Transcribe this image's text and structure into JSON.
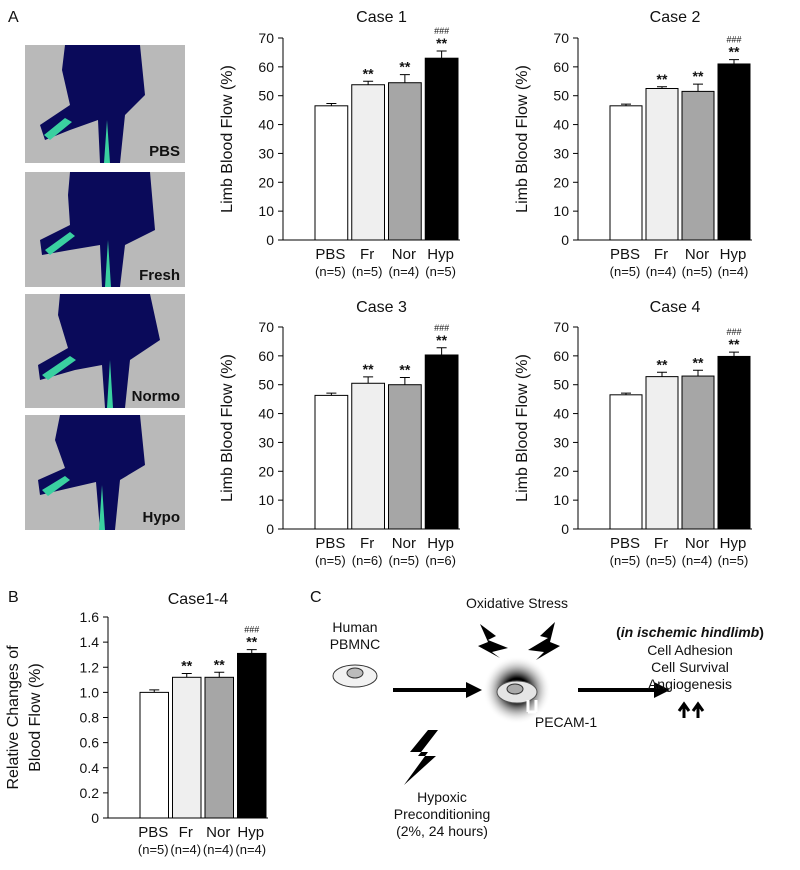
{
  "panel_labels": [
    "A",
    "B",
    "C"
  ],
  "image_labels": [
    "PBS",
    "Fresh",
    "Normo",
    "Hypo"
  ],
  "chart_data": [
    {
      "type": "bar",
      "title": "Case 1",
      "y_label": [
        "Limb Blood Flow (%)"
      ],
      "categories": [
        "PBS",
        "Fr",
        "Nor",
        "Hyp"
      ],
      "n_labels": [
        "(n=5)",
        "(n=5)",
        "(n=4)",
        "(n=5)"
      ],
      "values": [
        46.5,
        53.8,
        54.5,
        63
      ],
      "errors": [
        0.8,
        1.2,
        2.8,
        2.5
      ],
      "sig": [
        null,
        "**",
        "**",
        "**"
      ],
      "sig2": [
        null,
        null,
        null,
        "###"
      ],
      "colors": [
        "#ffffff",
        "#efefef",
        "#a6a6a6",
        "#000000"
      ],
      "ylim": [
        0,
        70
      ],
      "yticks": [
        0,
        10,
        20,
        30,
        40,
        50,
        60,
        70
      ]
    },
    {
      "type": "bar",
      "title": "Case 2",
      "y_label": [
        "Limb Blood Flow (%)"
      ],
      "categories": [
        "PBS",
        "Fr",
        "Nor",
        "Hyp"
      ],
      "n_labels": [
        "(n=5)",
        "(n=4)",
        "(n=5)",
        "(n=4)"
      ],
      "values": [
        46.5,
        52.5,
        51.5,
        61
      ],
      "errors": [
        0.6,
        0.6,
        2.5,
        1.5
      ],
      "sig": [
        null,
        "**",
        "**",
        "**"
      ],
      "sig2": [
        null,
        null,
        null,
        "###"
      ],
      "colors": [
        "#ffffff",
        "#efefef",
        "#a6a6a6",
        "#000000"
      ],
      "ylim": [
        0,
        70
      ],
      "yticks": [
        0,
        10,
        20,
        30,
        40,
        50,
        60,
        70
      ]
    },
    {
      "type": "bar",
      "title": "Case 3",
      "y_label": [
        "Limb Blood Flow (%)"
      ],
      "categories": [
        "PBS",
        "Fr",
        "Nor",
        "Hyp"
      ],
      "n_labels": [
        "(n=5)",
        "(n=6)",
        "(n=5)",
        "(n=6)"
      ],
      "values": [
        46.3,
        50.5,
        50,
        60.3
      ],
      "errors": [
        0.8,
        2.2,
        2.5,
        2.5
      ],
      "sig": [
        null,
        "**",
        "**",
        "**"
      ],
      "sig2": [
        null,
        null,
        null,
        "###"
      ],
      "colors": [
        "#ffffff",
        "#efefef",
        "#a6a6a6",
        "#000000"
      ],
      "ylim": [
        0,
        70
      ],
      "yticks": [
        0,
        10,
        20,
        30,
        40,
        50,
        60,
        70
      ]
    },
    {
      "type": "bar",
      "title": "Case 4",
      "y_label": [
        "Limb Blood Flow (%)"
      ],
      "categories": [
        "PBS",
        "Fr",
        "Nor",
        "Hyp"
      ],
      "n_labels": [
        "(n=5)",
        "(n=5)",
        "(n=4)",
        "(n=5)"
      ],
      "values": [
        46.5,
        52.8,
        53,
        59.8
      ],
      "errors": [
        0.6,
        1.5,
        2,
        1.5
      ],
      "sig": [
        null,
        "**",
        "**",
        "**"
      ],
      "sig2": [
        null,
        null,
        null,
        "###"
      ],
      "colors": [
        "#ffffff",
        "#efefef",
        "#a6a6a6",
        "#000000"
      ],
      "ylim": [
        0,
        70
      ],
      "yticks": [
        0,
        10,
        20,
        30,
        40,
        50,
        60,
        70
      ]
    },
    {
      "type": "bar",
      "title": "Case1-4",
      "y_label": [
        "Relative Changes of",
        "Blood Flow (%)"
      ],
      "categories": [
        "PBS",
        "Fr",
        "Nor",
        "Hyp"
      ],
      "n_labels": [
        "(n=5)",
        "(n=4)",
        "(n=4)",
        "(n=4)"
      ],
      "values": [
        1.0,
        1.12,
        1.12,
        1.31
      ],
      "errors": [
        0.02,
        0.03,
        0.04,
        0.03
      ],
      "sig": [
        null,
        "**",
        "**",
        "**"
      ],
      "sig2": [
        null,
        null,
        null,
        "###"
      ],
      "colors": [
        "#ffffff",
        "#efefef",
        "#a6a6a6",
        "#000000"
      ],
      "ylim": [
        0,
        1.6
      ],
      "yticks": [
        0,
        0.2,
        0.4,
        0.6,
        0.8,
        {
          "value": 1,
          "label": "1.0"
        },
        1.2,
        1.4,
        1.6
      ]
    }
  ],
  "diagram": {
    "source": [
      "Human",
      "PBMNC"
    ],
    "stress": "Oxidative Stress",
    "marker": "PECAM-1",
    "precondition": [
      "Hypoxic",
      "Preconditioning",
      "(2%, 24 hours)"
    ],
    "context": [
      "(",
      "in ischemic hindlimb",
      ")"
    ],
    "effects": [
      "Cell Adhesion",
      "Cell Survival",
      "Angiogenesis"
    ]
  }
}
